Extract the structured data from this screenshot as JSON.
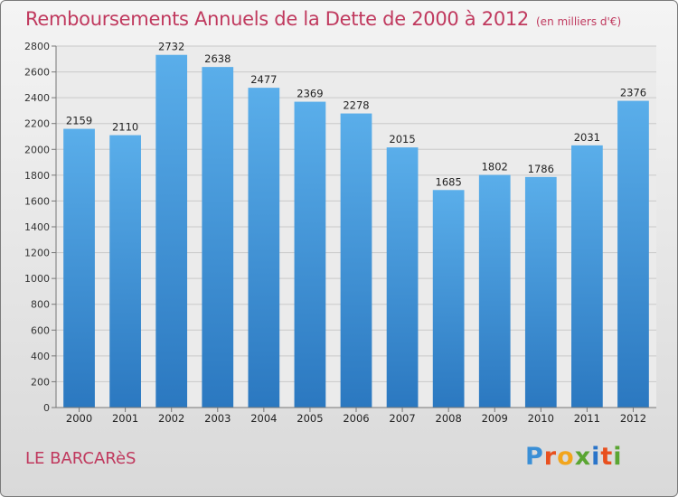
{
  "title": "Remboursements Annuels de la Dette de 2000 à 2012",
  "unit": "(en milliers d'€)",
  "commune": "LE BARCARèS",
  "logo": [
    "P",
    "r",
    "o",
    "x",
    "i",
    "t",
    "i"
  ],
  "colors": {
    "title": "#c0395e",
    "bar_top": "#5aaeea",
    "bar_bottom": "#2b78c0"
  },
  "chart_data": {
    "type": "bar",
    "categories": [
      "2000",
      "2001",
      "2002",
      "2003",
      "2004",
      "2005",
      "2006",
      "2007",
      "2008",
      "2009",
      "2010",
      "2011",
      "2012"
    ],
    "values": [
      2159,
      2110,
      2732,
      2638,
      2477,
      2369,
      2278,
      2015,
      1685,
      1802,
      1786,
      2031,
      2376
    ],
    "ylim": [
      0,
      2800
    ],
    "yticks": [
      0,
      200,
      400,
      600,
      800,
      1000,
      1200,
      1400,
      1600,
      1800,
      2000,
      2200,
      2400,
      2600,
      2800
    ],
    "grid": true
  }
}
